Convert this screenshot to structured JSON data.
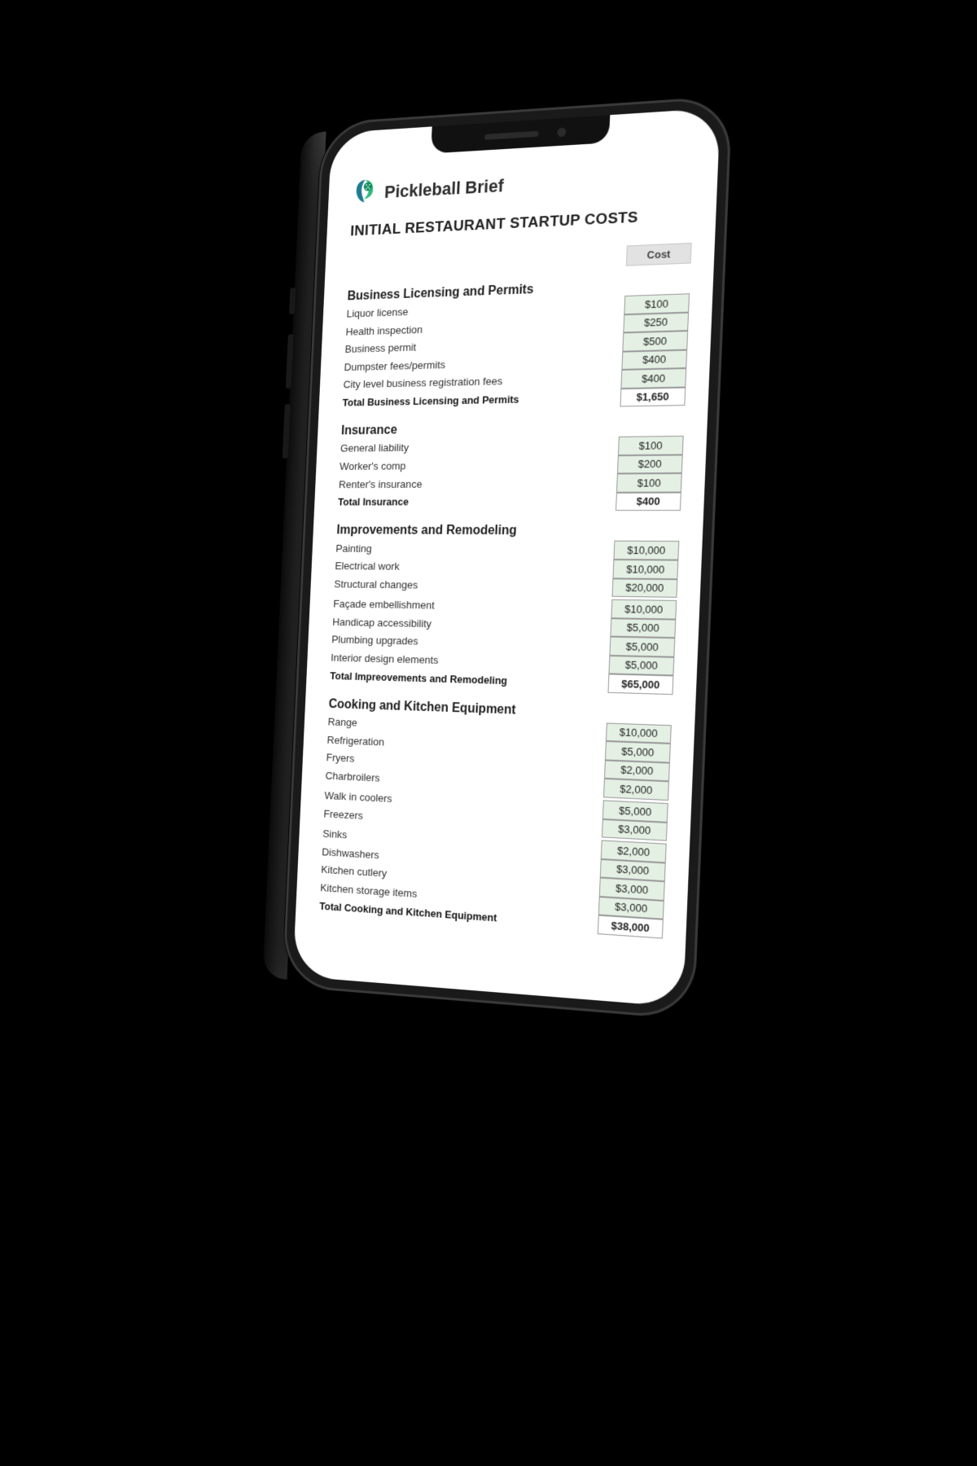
{
  "brand": {
    "name": "Pickleball Brief"
  },
  "title": "INITIAL RESTAURANT STARTUP COSTS",
  "costHeader": "Cost",
  "colors": {
    "cell_green": "#e4f0e4",
    "cell_border": "#9a9a9a",
    "header_bg": "#e2e2e2",
    "logo_green_dark": "#0b8a57",
    "logo_green_light": "#2fb97b",
    "logo_teal": "#1e7b8f"
  },
  "sections": [
    {
      "title": "Business Licensing and Permits",
      "items": [
        {
          "label": "Liquor license",
          "cost": "$100"
        },
        {
          "label": "Health inspection",
          "cost": "$250"
        },
        {
          "label": "Business permit",
          "cost": "$500"
        },
        {
          "label": "Dumpster fees/permits",
          "cost": "$400"
        },
        {
          "label": "City level business registration fees",
          "cost": "$400"
        }
      ],
      "total": {
        "label": "Total Business Licensing and Permits",
        "cost": "$1,650"
      }
    },
    {
      "title": "Insurance",
      "items": [
        {
          "label": "General liability",
          "cost": "$100"
        },
        {
          "label": "Worker's comp",
          "cost": "$200"
        },
        {
          "label": "Renter's insurance",
          "cost": "$100"
        }
      ],
      "total": {
        "label": "Total Insurance",
        "cost": "$400"
      }
    },
    {
      "title": "Improvements and Remodeling",
      "items": [
        {
          "label": "Painting",
          "cost": "$10,000"
        },
        {
          "label": "Electrical work",
          "cost": "$10,000"
        },
        {
          "label": "Structural changes",
          "cost": "$20,000"
        },
        {
          "label": "Façade embellishment",
          "cost": "$10,000",
          "gapBefore": true
        },
        {
          "label": "Handicap accessibility",
          "cost": "$5,000"
        },
        {
          "label": "Plumbing upgrades",
          "cost": "$5,000"
        },
        {
          "label": "Interior design elements",
          "cost": "$5,000"
        }
      ],
      "total": {
        "label": "Total Impreovements and Remodeling",
        "cost": "$65,000"
      }
    },
    {
      "title": "Cooking and Kitchen Equipment",
      "items": [
        {
          "label": "Range",
          "cost": "$10,000"
        },
        {
          "label": "Refrigeration",
          "cost": "$5,000"
        },
        {
          "label": "Fryers",
          "cost": "$2,000"
        },
        {
          "label": "Charbroilers",
          "cost": "$2,000"
        },
        {
          "label": "Walk in coolers",
          "cost": "$5,000",
          "gapBefore": true
        },
        {
          "label": "Freezers",
          "cost": "$3,000"
        },
        {
          "label": "Sinks",
          "cost": "$2,000",
          "gapBefore": true
        },
        {
          "label": "Dishwashers",
          "cost": "$3,000"
        },
        {
          "label": "Kitchen cutlery",
          "cost": "$3,000"
        },
        {
          "label": "Kitchen storage items",
          "cost": "$3,000"
        }
      ],
      "total": {
        "label": "Total Cooking and Kitchen Equipment",
        "cost": "$38,000"
      }
    }
  ]
}
